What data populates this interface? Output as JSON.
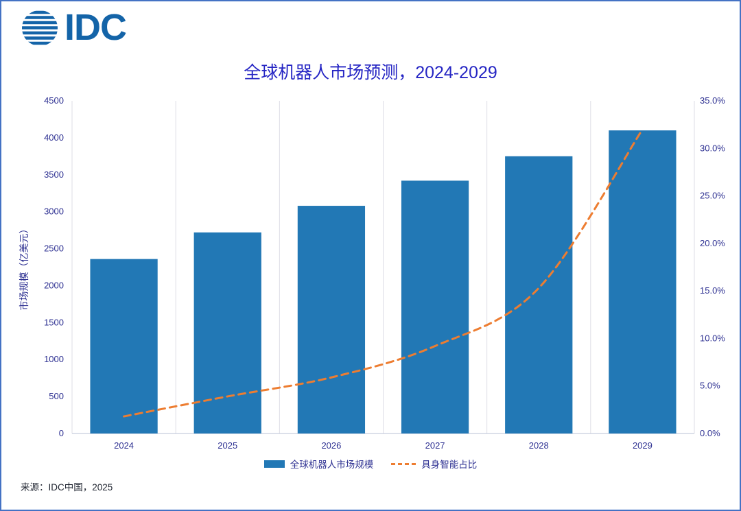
{
  "logo": {
    "text": "IDC"
  },
  "title": "全球机器人市场预测，2024-2029",
  "source": "来源：IDC中国，2025",
  "colors": {
    "brand_blue": "#1464A8",
    "bar_blue": "#2278B5",
    "line_orange": "#ED7D31",
    "title_blue": "#2626C4",
    "axis_text": "#2E3192",
    "border_blue": "#4472C4",
    "gridline": "#DDDDE6"
  },
  "chart_data": {
    "type": "bar",
    "subtype": "bar+line-combo",
    "title": "全球机器人市场预测，2024-2029",
    "categories": [
      "2024",
      "2025",
      "2026",
      "2027",
      "2028",
      "2029"
    ],
    "series": [
      {
        "name": "全球机器人市场规模",
        "type": "bar",
        "axis": "left",
        "values": [
          2360,
          2720,
          3080,
          3420,
          3750,
          4100
        ],
        "color": "#2278B5"
      },
      {
        "name": "具身智能占比",
        "type": "line",
        "axis": "right",
        "dashed": true,
        "values": [
          1.8,
          3.9,
          5.9,
          9.2,
          15.3,
          32.0
        ],
        "color": "#ED7D31"
      }
    ],
    "left_axis": {
      "label": "市场规模（亿美元）",
      "min": 0,
      "max": 4500,
      "step": 500
    },
    "right_axis": {
      "label": "",
      "min": 0,
      "max": 35,
      "step": 5,
      "unit": "%"
    },
    "grid": "vertical-only",
    "legend_position": "bottom"
  }
}
